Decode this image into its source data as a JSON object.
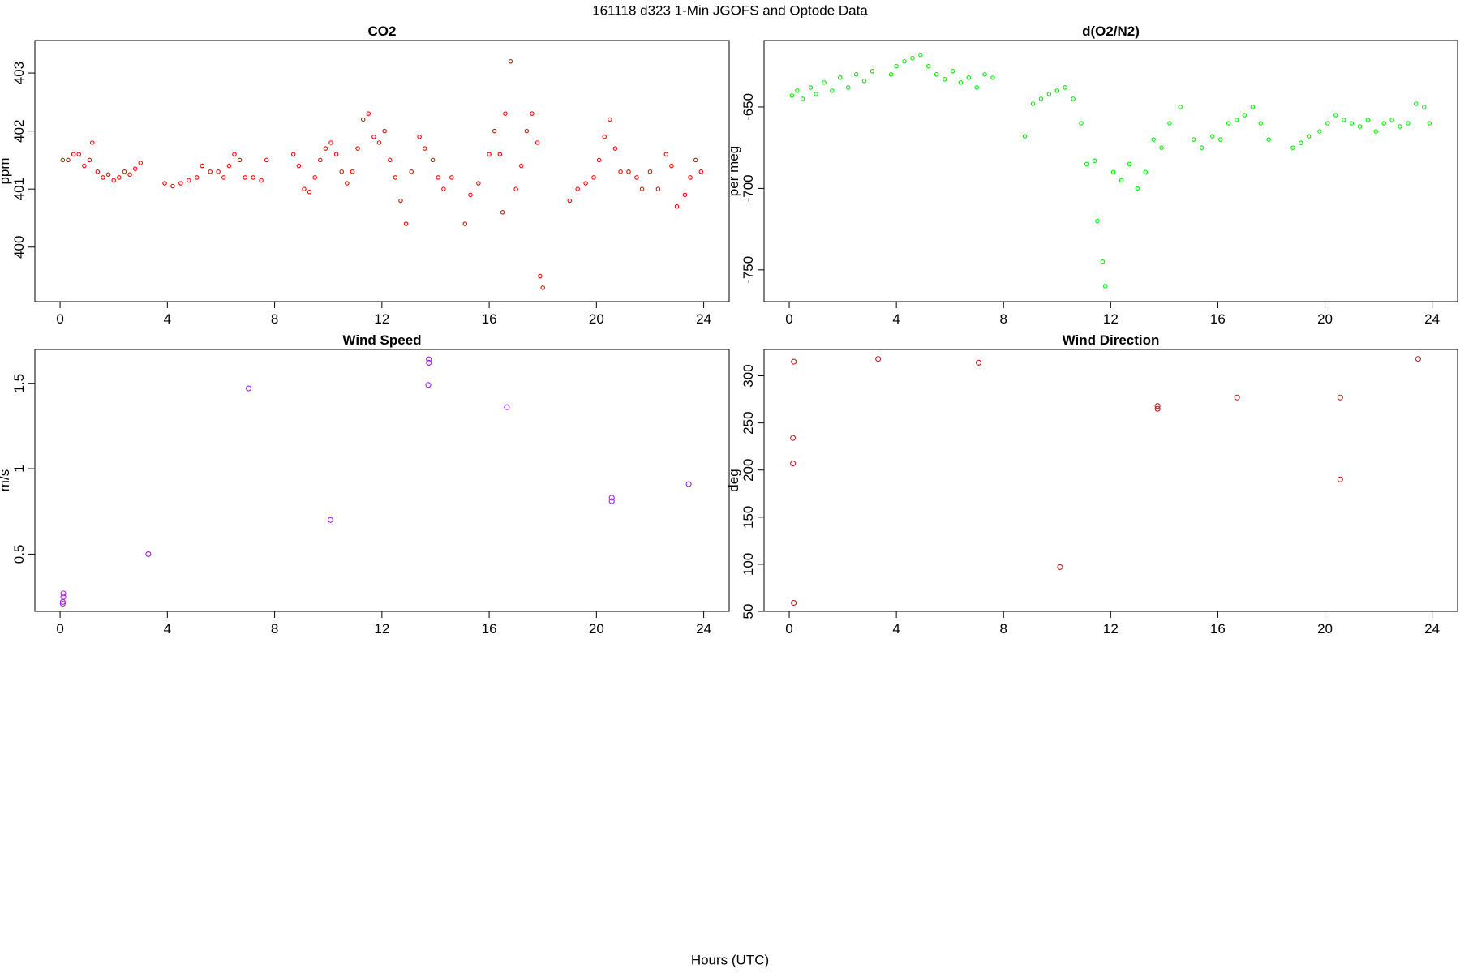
{
  "title": "161118   d323   1-Min  JGOFS and Optode Data",
  "xlabel": "Hours (UTC)",
  "chart_data": [
    {
      "type": "scatter",
      "title": "CO2",
      "ylabel": "ppm",
      "color": "#ff0000",
      "xlim": [
        -0.94,
        24.95
      ],
      "ylim": [
        399.06,
        403.56
      ],
      "xticks": [
        0,
        4,
        8,
        12,
        16,
        20,
        24
      ],
      "yticks": [
        400,
        401,
        402,
        403
      ],
      "x": [
        0.1,
        0.3,
        0.5,
        0.7,
        0.9,
        1.1,
        1.2,
        1.4,
        1.6,
        1.8,
        2.0,
        2.2,
        2.4,
        2.6,
        2.8,
        3.0,
        3.9,
        4.2,
        4.5,
        4.8,
        5.1,
        5.3,
        5.6,
        5.9,
        6.1,
        6.3,
        6.5,
        6.7,
        6.9,
        7.2,
        7.5,
        7.7,
        8.7,
        8.9,
        9.1,
        9.3,
        9.5,
        9.7,
        9.9,
        10.1,
        10.3,
        10.5,
        10.7,
        10.9,
        11.1,
        11.3,
        11.5,
        11.7,
        11.9,
        12.1,
        12.3,
        12.5,
        12.7,
        12.9,
        13.1,
        13.4,
        13.6,
        13.9,
        14.1,
        14.3,
        14.6,
        15.1,
        15.3,
        15.6,
        16.0,
        16.2,
        16.4,
        16.5,
        16.6,
        16.8,
        17.0,
        17.2,
        17.4,
        17.6,
        17.8,
        17.9,
        18.0,
        19.0,
        19.3,
        19.6,
        19.9,
        20.1,
        20.3,
        20.5,
        20.7,
        20.9,
        21.2,
        21.5,
        21.7,
        22.0,
        22.3,
        22.6,
        22.8,
        23.0,
        23.3,
        23.5,
        23.7,
        23.9
      ],
      "values": [
        401.5,
        401.5,
        401.6,
        401.6,
        401.4,
        401.5,
        401.8,
        401.3,
        401.2,
        401.25,
        401.15,
        401.2,
        401.3,
        401.25,
        401.35,
        401.45,
        401.1,
        401.05,
        401.1,
        401.15,
        401.2,
        401.4,
        401.3,
        401.3,
        401.2,
        401.4,
        401.6,
        401.5,
        401.2,
        401.2,
        401.15,
        401.5,
        401.6,
        401.4,
        401.0,
        400.95,
        401.2,
        401.5,
        401.7,
        401.8,
        401.6,
        401.3,
        401.1,
        401.3,
        401.7,
        402.2,
        402.3,
        401.9,
        401.8,
        402.0,
        401.5,
        401.2,
        400.8,
        400.4,
        401.3,
        401.9,
        401.7,
        401.5,
        401.2,
        401.0,
        401.2,
        400.4,
        400.9,
        401.1,
        401.6,
        402.0,
        401.6,
        400.6,
        402.3,
        403.2,
        401.0,
        401.4,
        402.0,
        402.3,
        401.8,
        399.5,
        399.3,
        400.8,
        401.0,
        401.1,
        401.2,
        401.5,
        401.9,
        402.2,
        401.7,
        401.3,
        401.3,
        401.2,
        401.0,
        401.3,
        401.0,
        401.6,
        401.4,
        400.7,
        400.9,
        401.2,
        401.5,
        401.3
      ]
    },
    {
      "type": "scatter",
      "title": "d(O2/N2)",
      "ylabel": "per meg",
      "color": "#00ee00",
      "xlim": [
        -0.94,
        24.95
      ],
      "ylim": [
        -769.5,
        -609.2
      ],
      "xticks": [
        0,
        4,
        8,
        12,
        16,
        20,
        24
      ],
      "yticks": [
        -750,
        -700,
        -650
      ],
      "x": [
        0.1,
        0.3,
        0.5,
        0.8,
        1.0,
        1.3,
        1.6,
        1.9,
        2.2,
        2.5,
        2.8,
        3.1,
        3.8,
        4.0,
        4.3,
        4.6,
        4.9,
        5.2,
        5.5,
        5.8,
        6.1,
        6.4,
        6.7,
        7.0,
        7.3,
        7.6,
        8.8,
        9.1,
        9.4,
        9.7,
        10.0,
        10.3,
        10.6,
        10.9,
        11.1,
        11.4,
        11.5,
        11.7,
        11.8,
        12.1,
        12.4,
        12.7,
        13.0,
        13.3,
        13.6,
        13.9,
        14.2,
        14.6,
        15.1,
        15.4,
        15.8,
        16.1,
        16.4,
        16.7,
        17.0,
        17.3,
        17.6,
        17.9,
        18.8,
        19.1,
        19.4,
        19.8,
        20.1,
        20.4,
        20.7,
        21.0,
        21.3,
        21.6,
        21.9,
        22.2,
        22.5,
        22.8,
        23.1,
        23.4,
        23.7,
        23.9
      ],
      "values": [
        -643,
        -640,
        -645,
        -638,
        -642,
        -635,
        -640,
        -632,
        -638,
        -630,
        -634,
        -628,
        -630,
        -625,
        -622,
        -620,
        -618,
        -625,
        -630,
        -633,
        -628,
        -635,
        -632,
        -638,
        -630,
        -632,
        -668,
        -648,
        -645,
        -642,
        -640,
        -638,
        -645,
        -660,
        -685,
        -683,
        -720,
        -745,
        -760,
        -690,
        -695,
        -685,
        -700,
        -690,
        -670,
        -675,
        -660,
        -650,
        -670,
        -675,
        -668,
        -670,
        -660,
        -658,
        -655,
        -650,
        -660,
        -670,
        -675,
        -672,
        -668,
        -665,
        -660,
        -655,
        -658,
        -660,
        -662,
        -658,
        -665,
        -660,
        -658,
        -662,
        -660,
        -648,
        -650,
        -660
      ]
    },
    {
      "type": "scatter",
      "title": "Wind Speed",
      "ylabel": "m/s",
      "color": "#a020f0",
      "xlim": [
        -0.94,
        24.95
      ],
      "ylim": [
        0.165,
        1.698
      ],
      "xticks": [
        0,
        4,
        8,
        12,
        16,
        20,
        24
      ],
      "yticks": [
        0.5,
        1.0,
        1.5
      ],
      "x": [
        0.1,
        0.1,
        0.12,
        0.12,
        3.29,
        7.03,
        10.08,
        13.75,
        13.75,
        13.73,
        16.66,
        20.57,
        20.57,
        23.44
      ],
      "values": [
        0.21,
        0.22,
        0.25,
        0.27,
        0.5,
        1.47,
        0.7,
        1.64,
        1.62,
        1.49,
        1.36,
        0.83,
        0.81,
        0.91
      ]
    },
    {
      "type": "scatter",
      "title": "Wind Direction",
      "ylabel": "deg",
      "color": "#c02020",
      "xlim": [
        -0.94,
        24.95
      ],
      "ylim": [
        50,
        328
      ],
      "xticks": [
        0,
        4,
        8,
        12,
        16,
        20,
        24
      ],
      "yticks": [
        50,
        100,
        150,
        200,
        250,
        300
      ],
      "x": [
        0.17,
        0.14,
        0.14,
        0.17,
        3.32,
        7.07,
        10.11,
        13.75,
        13.75,
        16.72,
        20.57,
        20.57,
        23.48
      ],
      "values": [
        315,
        234,
        207,
        59,
        318,
        314,
        97,
        268,
        265,
        277,
        277,
        190,
        318
      ]
    }
  ]
}
